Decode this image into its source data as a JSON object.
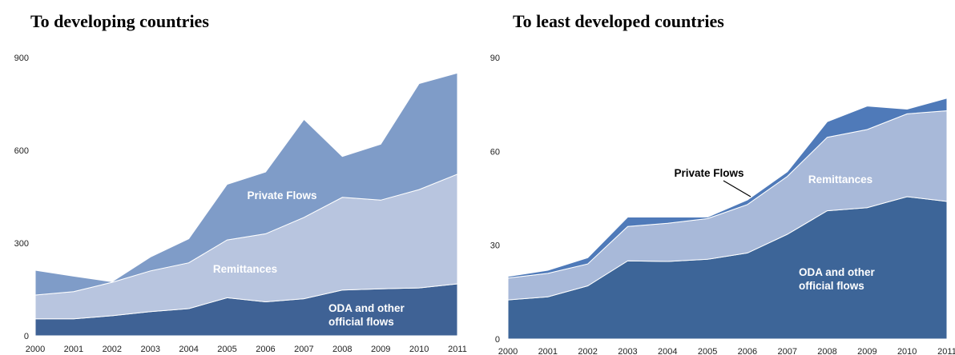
{
  "chart_data": [
    {
      "type": "area",
      "title": "To developing countries",
      "x": [
        "2000",
        "2001",
        "2002",
        "2003",
        "2004",
        "2005",
        "2006",
        "2007",
        "2008",
        "2009",
        "2010",
        "2011"
      ],
      "ylim": [
        0,
        900
      ],
      "yticks": [
        "0",
        "300",
        "600",
        "900"
      ],
      "stacked": true,
      "series": [
        {
          "name": "ODA and other official flows",
          "values": [
            55,
            55,
            65,
            78,
            88,
            123,
            110,
            120,
            148,
            152,
            155,
            168
          ],
          "color": "#3f6295"
        },
        {
          "name": "Remittances",
          "values": [
            77,
            88,
            108,
            132,
            148,
            187,
            220,
            263,
            300,
            287,
            318,
            355
          ],
          "color": "#b8c5df"
        },
        {
          "name": "Private Flows",
          "values": [
            80,
            50,
            2,
            45,
            78,
            180,
            200,
            317,
            132,
            181,
            343,
            327
          ],
          "color": "#7f9cc8"
        }
      ],
      "labels": [
        {
          "text": "Private Flows",
          "color": "#ffffff"
        },
        {
          "text": "Remittances",
          "color": "#ffffff"
        },
        {
          "text": [
            "ODA and other",
            "official flows"
          ],
          "color": "#ffffff"
        }
      ]
    },
    {
      "type": "area",
      "title": "To least developed countries",
      "x": [
        "2000",
        "2001",
        "2002",
        "2003",
        "2004",
        "2005",
        "2006",
        "2007",
        "2008",
        "2009",
        "2010",
        "2011"
      ],
      "ylim": [
        0,
        90
      ],
      "yticks": [
        "0",
        "30",
        "60",
        "90"
      ],
      "stacked": true,
      "series": [
        {
          "name": "ODA and other official flows",
          "values": [
            12.5,
            13.5,
            17,
            25,
            24.8,
            25.5,
            27.5,
            33.5,
            41,
            42,
            45.5,
            44
          ],
          "color": "#3d6598"
        },
        {
          "name": "Remittances",
          "values": [
            7,
            7.5,
            7,
            11,
            12.2,
            13,
            15.5,
            18.5,
            23.5,
            25,
            26.5,
            29
          ],
          "color": "#a8b9d9"
        },
        {
          "name": "Private Flows",
          "values": [
            0.5,
            1,
            2,
            3,
            2,
            0.5,
            1.5,
            1.5,
            5,
            7.5,
            1.5,
            4
          ],
          "color": "#4f7ab9"
        }
      ],
      "labels": [
        {
          "text": "Private Flows",
          "color": "#000000"
        },
        {
          "text": "Remittances",
          "color": "#ffffff"
        },
        {
          "text": [
            "ODA and other",
            "official flows"
          ],
          "color": "#ffffff"
        }
      ]
    }
  ]
}
